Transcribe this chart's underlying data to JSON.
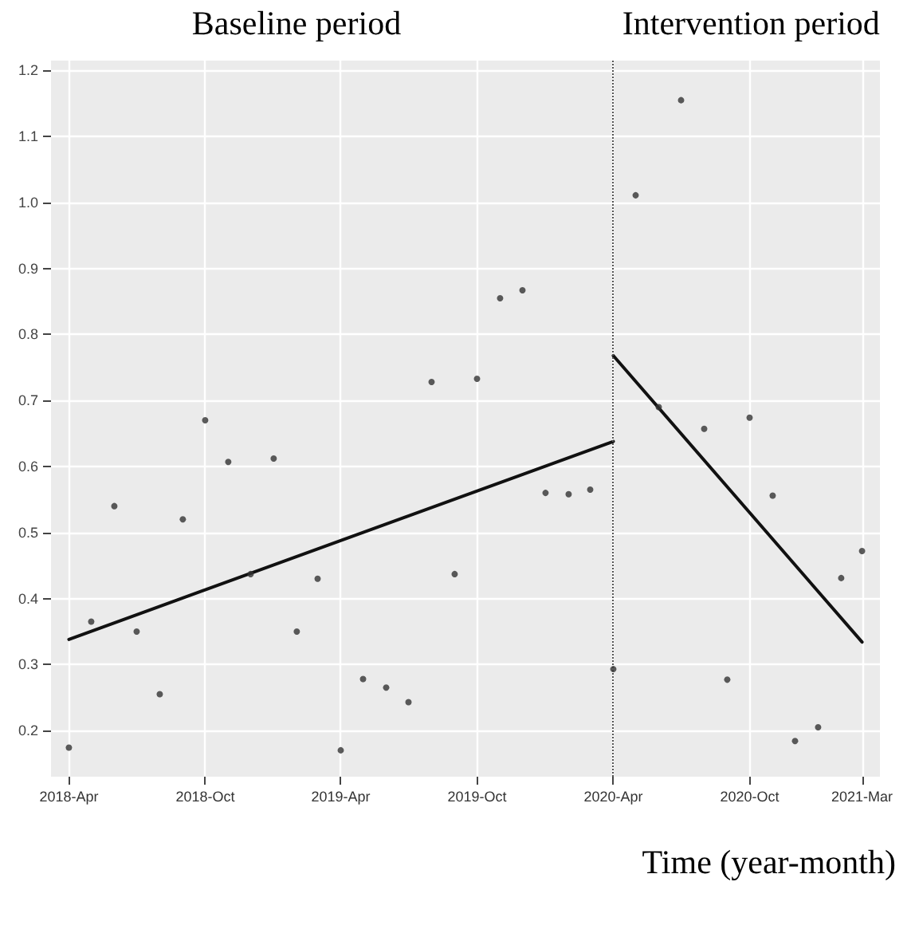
{
  "chart_data": {
    "type": "scatter",
    "xlabel": "Time (year-month)",
    "annotations": [
      "Baseline period",
      "Intervention period"
    ],
    "x": [
      "2018-04",
      "2018-05",
      "2018-06",
      "2018-07",
      "2018-08",
      "2018-09",
      "2018-10",
      "2018-11",
      "2018-12",
      "2019-01",
      "2019-02",
      "2019-03",
      "2019-04",
      "2019-05",
      "2019-06",
      "2019-07",
      "2019-08",
      "2019-09",
      "2019-10",
      "2019-11",
      "2019-12",
      "2020-01",
      "2020-02",
      "2020-03",
      "2020-04",
      "2020-05",
      "2020-06",
      "2020-07",
      "2020-08",
      "2020-09",
      "2020-10",
      "2020-11",
      "2020-12",
      "2021-01",
      "2021-02",
      "2021-03"
    ],
    "series": [
      {
        "marker": "circle",
        "color": "#333333",
        "values": [
          0.174,
          0.365,
          0.54,
          0.35,
          0.255,
          0.52,
          0.67,
          0.607,
          0.437,
          0.612,
          0.35,
          0.43,
          0.17,
          0.278,
          0.265,
          0.243,
          0.728,
          0.437,
          0.733,
          0.855,
          0.867,
          0.56,
          0.558,
          0.565,
          0.293,
          1.011,
          0.69,
          1.155,
          0.657,
          0.277,
          0.674,
          0.556,
          0.184,
          0.205,
          0.431,
          0.472
        ]
      },
      {
        "type": "line",
        "marker": "none",
        "color": "#111111",
        "x": [
          "2018-04",
          "2020-04"
        ],
        "values": [
          0.338,
          0.638
        ]
      },
      {
        "type": "line",
        "marker": "none",
        "color": "#111111",
        "x": [
          "2020-04",
          "2021-03"
        ],
        "values": [
          0.768,
          0.334
        ]
      }
    ],
    "xlim": [
      "2018-03-08",
      "2021-03-25"
    ],
    "xticks": [
      {
        "value": "2018-04",
        "label": "2018-Apr"
      },
      {
        "value": "2018-10",
        "label": "2018-Oct"
      },
      {
        "value": "2019-04",
        "label": "2019-Apr"
      },
      {
        "value": "2019-10",
        "label": "2019-Oct"
      },
      {
        "value": "2020-04",
        "label": "2020-Apr"
      },
      {
        "value": "2020-10",
        "label": "2020-Oct"
      },
      {
        "value": "2021-03",
        "label": "2021-Mar"
      }
    ],
    "ylim": [
      0.13,
      1.215
    ],
    "yticks": [
      0.2,
      0.3,
      0.4,
      0.5,
      0.6,
      0.7,
      0.8,
      0.9,
      {
        "value": 1,
        "label": "1.0"
      },
      1.1,
      1.2
    ],
    "ref_lines": [
      {
        "axis": "x",
        "value": "2020-04",
        "line_style": "dotted",
        "color": "#555555"
      }
    ],
    "grid": true,
    "line_style": "solid"
  }
}
